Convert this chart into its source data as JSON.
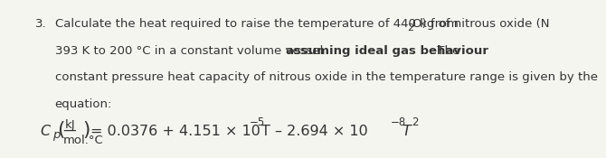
{
  "number": "3.",
  "line1": "Calculate the heat required to raise the temperature of 440 kg of nitrous oxide (N",
  "line1_sub": "2",
  "line1_end": "O) from",
  "line2_normal1": "393 K to 200 °C in a constant volume vessel ",
  "line2_bold": "assuming ideal gas behaviour",
  "line2_normal2": ". The",
  "line3": "constant pressure heat capacity of nitrous oxide in the temperature range is given by the",
  "line4": "equation:",
  "equation_left": "C",
  "equation_left_sub": "p",
  "equation_paren_kJ": "kJ",
  "equation_paren_mol": "mol.°C",
  "equation_rhs": "= 0.0376 + 4.151 × 10",
  "equation_rhs_exp1": "−5",
  "equation_rhs_T1": "T – 2.694 × 10",
  "equation_rhs_exp2": "−8",
  "equation_rhs_T2": "T",
  "equation_rhs_T2_exp": "2",
  "bg_color": "#f5f5f0",
  "text_color": "#333333",
  "font_size_body": 9.5,
  "font_size_eq": 11.5
}
